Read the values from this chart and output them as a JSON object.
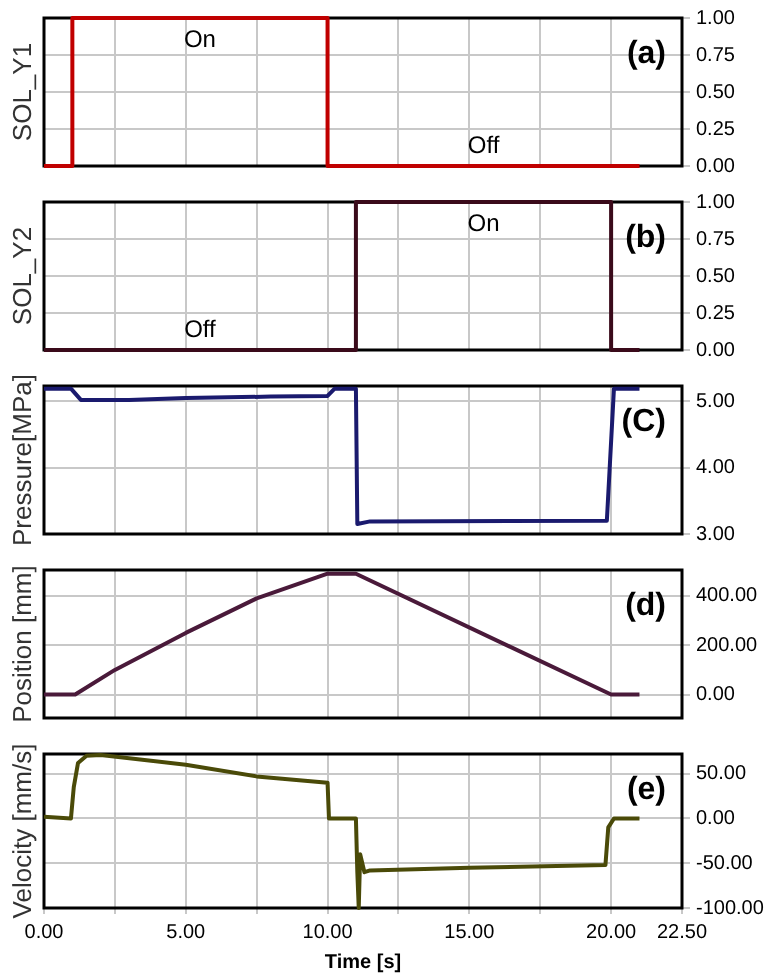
{
  "chart_data": [
    {
      "type": "step",
      "x": [
        0,
        1,
        10,
        21
      ],
      "series": [
        {
          "color": "#c00000",
          "values": [
            0,
            1,
            0,
            0
          ]
        }
      ],
      "xlim": [
        0,
        22.5
      ],
      "xticks": [
        {
          "value": 0,
          "label": null
        },
        {
          "value": 2.5,
          "label": null
        },
        {
          "value": 5,
          "label": null
        },
        {
          "value": 7.5,
          "label": null
        },
        {
          "value": 10,
          "label": null
        },
        {
          "value": 12.5,
          "label": null
        },
        {
          "value": 15,
          "label": null
        },
        {
          "value": 17.5,
          "label": null
        },
        {
          "value": 20,
          "label": null
        },
        {
          "value": 22.5,
          "label": null
        }
      ],
      "ylim": [
        0,
        1
      ],
      "yticks": [
        {
          "value": 0,
          "label": "0.00"
        },
        {
          "value": 0.25,
          "label": "0.25"
        },
        {
          "value": 0.5,
          "label": "0.50"
        },
        {
          "value": 0.75,
          "label": "0.75"
        },
        {
          "value": 1,
          "label": "1.00"
        }
      ],
      "ylabel": "SOL_Y1",
      "grid": true,
      "tick_labels": "y",
      "annotations": [
        "(a)",
        "On",
        "Off"
      ]
    },
    {
      "type": "step",
      "x": [
        0,
        11,
        20,
        21
      ],
      "series": [
        {
          "color": "#3a0a1a",
          "values": [
            0,
            1,
            0,
            0
          ]
        }
      ],
      "xlim": [
        0,
        22.5
      ],
      "xticks": [
        {
          "value": 0,
          "label": null
        },
        {
          "value": 2.5,
          "label": null
        },
        {
          "value": 5,
          "label": null
        },
        {
          "value": 7.5,
          "label": null
        },
        {
          "value": 10,
          "label": null
        },
        {
          "value": 12.5,
          "label": null
        },
        {
          "value": 15,
          "label": null
        },
        {
          "value": 17.5,
          "label": null
        },
        {
          "value": 20,
          "label": null
        },
        {
          "value": 22.5,
          "label": null
        }
      ],
      "ylim": [
        0,
        1
      ],
      "yticks": [
        {
          "value": 0,
          "label": "0.00"
        },
        {
          "value": 0.25,
          "label": "0.25"
        },
        {
          "value": 0.5,
          "label": "0.50"
        },
        {
          "value": 0.75,
          "label": "0.75"
        },
        {
          "value": 1,
          "label": "1.00"
        }
      ],
      "ylabel": "SOL_Y2",
      "grid": true,
      "tick_labels": "y",
      "annotations": [
        "(b)",
        "On",
        "Off"
      ]
    },
    {
      "type": "line",
      "x": [
        0,
        0.95,
        1.3,
        3,
        5,
        8,
        10,
        10.25,
        11,
        11.05,
        11.5,
        19.85,
        20.1,
        21
      ],
      "series": [
        {
          "color": "#1a1a6e",
          "values": [
            5.19,
            5.19,
            5.02,
            5.02,
            5.05,
            5.07,
            5.08,
            5.19,
            5.19,
            3.15,
            3.19,
            3.2,
            5.19,
            5.19
          ]
        }
      ],
      "xlim": [
        0,
        22.5
      ],
      "xticks": [
        {
          "value": 0,
          "label": null
        },
        {
          "value": 2.5,
          "label": null
        },
        {
          "value": 5,
          "label": null
        },
        {
          "value": 7.5,
          "label": null
        },
        {
          "value": 10,
          "label": null
        },
        {
          "value": 12.5,
          "label": null
        },
        {
          "value": 15,
          "label": null
        },
        {
          "value": 17.5,
          "label": null
        },
        {
          "value": 20,
          "label": null
        },
        {
          "value": 22.5,
          "label": null
        }
      ],
      "ylim": [
        3,
        5.23
      ],
      "yticks": [
        {
          "value": 3,
          "label": "3.00"
        },
        {
          "value": 4,
          "label": "4.00"
        },
        {
          "value": 5,
          "label": "5.00"
        }
      ],
      "ylabel": "Pressure[MPa]",
      "grid": true,
      "tick_labels": "y",
      "annotations": [
        "(C)"
      ]
    },
    {
      "type": "line",
      "x": [
        0,
        1.1,
        2.5,
        5,
        7.5,
        10,
        11,
        20,
        21
      ],
      "series": [
        {
          "color": "#4a1a3a",
          "values": [
            0,
            0,
            100,
            250,
            390,
            490,
            490,
            0,
            0
          ]
        }
      ],
      "xlim": [
        0,
        22.5
      ],
      "xticks": [
        {
          "value": 0,
          "label": null
        },
        {
          "value": 2.5,
          "label": null
        },
        {
          "value": 5,
          "label": null
        },
        {
          "value": 7.5,
          "label": null
        },
        {
          "value": 10,
          "label": null
        },
        {
          "value": 12.5,
          "label": null
        },
        {
          "value": 15,
          "label": null
        },
        {
          "value": 17.5,
          "label": null
        },
        {
          "value": 20,
          "label": null
        },
        {
          "value": 22.5,
          "label": null
        }
      ],
      "ylim": [
        -95,
        505
      ],
      "yticks": [
        {
          "value": 0,
          "label": "0.00"
        },
        {
          "value": 200,
          "label": "200.00"
        },
        {
          "value": 400,
          "label": "400.00"
        }
      ],
      "ylabel": "Position [mm]",
      "grid": true,
      "tick_labels": "y",
      "annotations": [
        "(d)"
      ]
    },
    {
      "type": "line",
      "x": [
        0,
        0.95,
        1.05,
        1.2,
        1.5,
        2,
        5,
        7.5,
        10,
        10.05,
        11,
        11.05,
        11.1,
        11.15,
        11.3,
        11.5,
        15,
        19.8,
        19.9,
        20.1,
        21
      ],
      "series": [
        {
          "color": "#4a4a08",
          "values": [
            2,
            0,
            35,
            62,
            70,
            71,
            60,
            47,
            40,
            0,
            0,
            -60,
            -100,
            -40,
            -60,
            -58,
            -55,
            -52,
            -10,
            0,
            0
          ]
        }
      ],
      "xlim": [
        0,
        22.5
      ],
      "xticks": [
        {
          "value": 0,
          "label": "0.00"
        },
        {
          "value": 2.5,
          "label": null
        },
        {
          "value": 5,
          "label": "5.00"
        },
        {
          "value": 7.5,
          "label": null
        },
        {
          "value": 10,
          "label": "10.00"
        },
        {
          "value": 12.5,
          "label": null
        },
        {
          "value": 15,
          "label": "15.00"
        },
        {
          "value": 17.5,
          "label": null
        },
        {
          "value": 20,
          "label": "20.00"
        },
        {
          "value": 22.5,
          "label": "22.50"
        }
      ],
      "ylim": [
        -100,
        72
      ],
      "yticks": [
        {
          "value": -100,
          "label": "-100.00"
        },
        {
          "value": -50,
          "label": "-50.00"
        },
        {
          "value": 0,
          "label": "0.00"
        },
        {
          "value": 50,
          "label": "50.00"
        }
      ],
      "xlabel": "Time [s]",
      "ylabel": "Velocity [mm/s]",
      "grid": true,
      "annotations": [
        "(e)"
      ]
    }
  ]
}
